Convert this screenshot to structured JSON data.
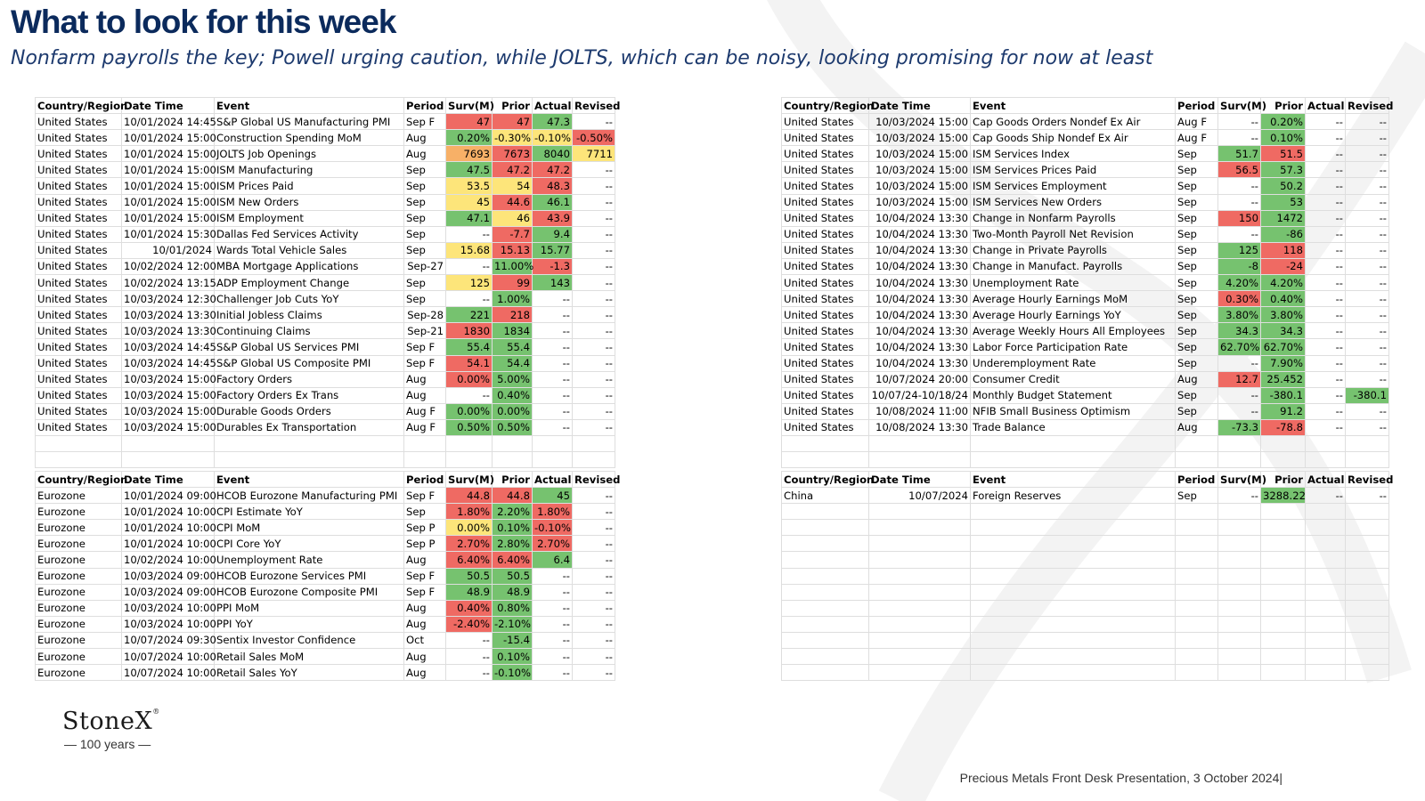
{
  "title": "What to look for this week",
  "subtitle": "Nonfarm payrolls the key; Powell urging caution, while JOLTS, which can be noisy, looking promising for now at least",
  "headers": [
    "Country/Region",
    "Date Time",
    "Event",
    "Period",
    "Surv(M)",
    "Prior",
    "Actual",
    "Revised"
  ],
  "colors": {
    "green": "#76c26f",
    "red": "#ef6a63",
    "yellow": "#fde57a",
    "orange": "#f7b067",
    "title": "#0b2a5c"
  },
  "us_table_1": [
    [
      "United States",
      "10/01/2024 14:45",
      "S&P Global US Manufacturing PMI",
      "Sep F",
      "47",
      "47",
      "47.3",
      "--"
    ],
    [
      "United States",
      "10/01/2024 15:00",
      "Construction Spending MoM",
      "Aug",
      "0.20%",
      "-0.30%",
      "-0.10%",
      "-0.50%"
    ],
    [
      "United States",
      "10/01/2024 15:00",
      "JOLTS Job Openings",
      "Aug",
      "7693",
      "7673",
      "8040",
      "7711"
    ],
    [
      "United States",
      "10/01/2024 15:00",
      "ISM Manufacturing",
      "Sep",
      "47.5",
      "47.2",
      "47.2",
      "--"
    ],
    [
      "United States",
      "10/01/2024 15:00",
      "ISM Prices Paid",
      "Sep",
      "53.5",
      "54",
      "48.3",
      "--"
    ],
    [
      "United States",
      "10/01/2024 15:00",
      "ISM New Orders",
      "Sep",
      "45",
      "44.6",
      "46.1",
      "--"
    ],
    [
      "United States",
      "10/01/2024 15:00",
      "ISM Employment",
      "Sep",
      "47.1",
      "46",
      "43.9",
      "--"
    ],
    [
      "United States",
      "10/01/2024 15:30",
      "Dallas Fed Services Activity",
      "Sep",
      "--",
      "-7.7",
      "9.4",
      "--"
    ],
    [
      "United States",
      "10/01/2024",
      "Wards Total Vehicle Sales",
      "Sep",
      "15.68",
      "15.13",
      "15.77",
      "--"
    ],
    [
      "United States",
      "10/02/2024 12:00",
      "MBA Mortgage Applications",
      "Sep-27",
      "--",
      "11.00%",
      "-1.3",
      "--"
    ],
    [
      "United States",
      "10/02/2024 13:15",
      "ADP Employment Change",
      "Sep",
      "125",
      "99",
      "143",
      "--"
    ],
    [
      "United States",
      "10/03/2024 12:30",
      "Challenger Job Cuts YoY",
      "Sep",
      "--",
      "1.00%",
      "--",
      "--"
    ],
    [
      "United States",
      "10/03/2024 13:30",
      "Initial Jobless Claims",
      "Sep-28",
      "221",
      "218",
      "--",
      "--"
    ],
    [
      "United States",
      "10/03/2024 13:30",
      "Continuing Claims",
      "Sep-21",
      "1830",
      "1834",
      "--",
      "--"
    ],
    [
      "United States",
      "10/03/2024 14:45",
      "S&P Global US Services PMI",
      "Sep F",
      "55.4",
      "55.4",
      "--",
      "--"
    ],
    [
      "United States",
      "10/03/2024 14:45",
      "S&P Global US Composite PMI",
      "Sep F",
      "54.1",
      "54.4",
      "--",
      "--"
    ],
    [
      "United States",
      "10/03/2024 15:00",
      "Factory Orders",
      "Aug",
      "0.00%",
      "5.00%",
      "--",
      "--"
    ],
    [
      "United States",
      "10/03/2024 15:00",
      "Factory Orders Ex Trans",
      "Aug",
      "--",
      "0.40%",
      "--",
      "--"
    ],
    [
      "United States",
      "10/03/2024 15:00",
      "Durable Goods Orders",
      "Aug F",
      "0.00%",
      "0.00%",
      "--",
      "--"
    ],
    [
      "United States",
      "10/03/2024 15:00",
      "Durables Ex Transportation",
      "Aug F",
      "0.50%",
      "0.50%",
      "--",
      "--"
    ]
  ],
  "us_table_2": [
    [
      "United States",
      "10/03/2024 15:00",
      "Cap Goods Orders Nondef Ex Air",
      "Aug F",
      "--",
      "0.20%",
      "--",
      "--"
    ],
    [
      "United States",
      "10/03/2024 15:00",
      "Cap Goods Ship Nondef Ex Air",
      "Aug F",
      "--",
      "0.10%",
      "--",
      "--"
    ],
    [
      "United States",
      "10/03/2024 15:00",
      "ISM Services Index",
      "Sep",
      "51.7",
      "51.5",
      "--",
      "--"
    ],
    [
      "United States",
      "10/03/2024 15:00",
      "ISM Services Prices Paid",
      "Sep",
      "56.5",
      "57.3",
      "--",
      "--"
    ],
    [
      "United States",
      "10/03/2024 15:00",
      "ISM Services Employment",
      "Sep",
      "--",
      "50.2",
      "--",
      "--"
    ],
    [
      "United States",
      "10/03/2024 15:00",
      "ISM Services New Orders",
      "Sep",
      "--",
      "53",
      "--",
      "--"
    ],
    [
      "United States",
      "10/04/2024 13:30",
      "Change in Nonfarm Payrolls",
      "Sep",
      "150",
      "1472",
      "--",
      "--"
    ],
    [
      "United States",
      "10/04/2024 13:30",
      "Two-Month Payroll Net Revision",
      "Sep",
      "--",
      "-86",
      "--",
      "--"
    ],
    [
      "United States",
      "10/04/2024 13:30",
      "Change in Private Payrolls",
      "Sep",
      "125",
      "118",
      "--",
      "--"
    ],
    [
      "United States",
      "10/04/2024 13:30",
      "Change in Manufact. Payrolls",
      "Sep",
      "-8",
      "-24",
      "--",
      "--"
    ],
    [
      "United States",
      "10/04/2024 13:30",
      "Unemployment Rate",
      "Sep",
      "4.20%",
      "4.20%",
      "--",
      "--"
    ],
    [
      "United States",
      "10/04/2024 13:30",
      "Average Hourly Earnings MoM",
      "Sep",
      "0.30%",
      "0.40%",
      "--",
      "--"
    ],
    [
      "United States",
      "10/04/2024 13:30",
      "Average Hourly Earnings YoY",
      "Sep",
      "3.80%",
      "3.80%",
      "--",
      "--"
    ],
    [
      "United States",
      "10/04/2024 13:30",
      "Average Weekly Hours All Employees",
      "Sep",
      "34.3",
      "34.3",
      "--",
      "--"
    ],
    [
      "United States",
      "10/04/2024 13:30",
      "Labor Force Participation Rate",
      "Sep",
      "62.70%",
      "62.70%",
      "--",
      "--"
    ],
    [
      "United States",
      "10/04/2024 13:30",
      "Underemployment Rate",
      "Sep",
      "--",
      "7.90%",
      "--",
      "--"
    ],
    [
      "United States",
      "10/07/2024 20:00",
      "Consumer Credit",
      "Aug",
      "12.7",
      "25.452",
      "--",
      "--"
    ],
    [
      "United States",
      "10/07/24-10/18/24",
      "Monthly Budget Statement",
      "Sep",
      "--",
      "-380.1",
      "--",
      "-380.1"
    ],
    [
      "United States",
      "10/08/2024 11:00",
      "NFIB Small Business Optimism",
      "Sep",
      "--",
      "91.2",
      "--",
      "--"
    ],
    [
      "United States",
      "10/08/2024 13:30",
      "Trade Balance",
      "Aug",
      "-73.3",
      "-78.8",
      "--",
      "--"
    ]
  ],
  "euro_table": [
    [
      "Eurozone",
      "10/01/2024 09:00",
      "HCOB Eurozone Manufacturing PMI",
      "Sep F",
      "44.8",
      "44.8",
      "45",
      "--"
    ],
    [
      "Eurozone",
      "10/01/2024 10:00",
      "CPI Estimate YoY",
      "Sep",
      "1.80%",
      "2.20%",
      "1.80%",
      "--"
    ],
    [
      "Eurozone",
      "10/01/2024 10:00",
      "CPI MoM",
      "Sep P",
      "0.00%",
      "0.10%",
      "-0.10%",
      "--"
    ],
    [
      "Eurozone",
      "10/01/2024 10:00",
      "CPI Core YoY",
      "Sep P",
      "2.70%",
      "2.80%",
      "2.70%",
      "--"
    ],
    [
      "Eurozone",
      "10/02/2024 10:00",
      "Unemployment Rate",
      "Aug",
      "6.40%",
      "6.40%",
      "6.4",
      "--"
    ],
    [
      "Eurozone",
      "10/03/2024 09:00",
      "HCOB Eurozone Services PMI",
      "Sep F",
      "50.5",
      "50.5",
      "--",
      "--"
    ],
    [
      "Eurozone",
      "10/03/2024 09:00",
      "HCOB Eurozone Composite PMI",
      "Sep F",
      "48.9",
      "48.9",
      "--",
      "--"
    ],
    [
      "Eurozone",
      "10/03/2024 10:00",
      "PPI MoM",
      "Aug",
      "0.40%",
      "0.80%",
      "--",
      "--"
    ],
    [
      "Eurozone",
      "10/03/2024 10:00",
      "PPI YoY",
      "Aug",
      "-2.40%",
      "-2.10%",
      "--",
      "--"
    ],
    [
      "Eurozone",
      "10/07/2024 09:30",
      "Sentix Investor Confidence",
      "Oct",
      "--",
      "-15.4",
      "--",
      "--"
    ],
    [
      "Eurozone",
      "10/07/2024 10:00",
      "Retail Sales MoM",
      "Aug",
      "--",
      "0.10%",
      "--",
      "--"
    ],
    [
      "Eurozone",
      "10/07/2024 10:00",
      "Retail Sales YoY",
      "Aug",
      "--",
      "-0.10%",
      "--",
      "--"
    ]
  ],
  "china_table": [
    [
      "China",
      "10/07/2024",
      "Foreign Reserves",
      "Sep",
      "--",
      "3288.22",
      "--",
      "--"
    ]
  ],
  "logo": {
    "name": "StoneX",
    "reg": "®",
    "years": "— 100 years —"
  },
  "footer": "Precious Metals Front Desk Presentation, 3 October 2024|"
}
